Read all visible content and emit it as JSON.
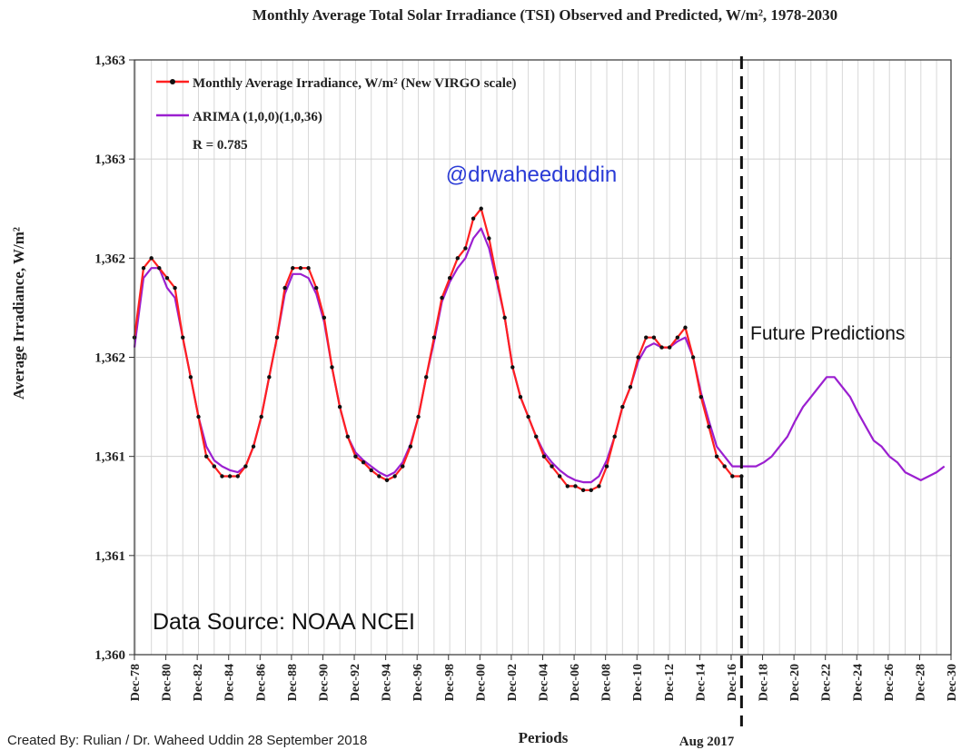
{
  "chart_data": {
    "type": "line",
    "title": "Monthly Average Total Solar Irradiance (TSI) Observed and Predicted, W/m², 1978-2030",
    "ylabel": "Average Irradiance, W/m²",
    "xlabel": "Periods",
    "ylim": [
      1360.0,
      1363.0
    ],
    "xlim": [
      1978.92,
      2030.92
    ],
    "y_tick_values": [
      1360.0,
      1360.5,
      1361.0,
      1361.5,
      1362.0,
      1362.5,
      1363.0
    ],
    "y_tick_labels": [
      "1,360",
      "1,361",
      "1,361",
      "1,362",
      "1,362",
      "1,363",
      "1,363"
    ],
    "x_tick_labels": [
      "Dec-78",
      "Dec-80",
      "Dec-82",
      "Dec-84",
      "Dec-86",
      "Dec-88",
      "Dec-90",
      "Dec-92",
      "Dec-94",
      "Dec-96",
      "Dec-98",
      "Dec-00",
      "Dec-02",
      "Dec-04",
      "Dec-06",
      "Dec-08",
      "Dec-10",
      "Dec-12",
      "Dec-14",
      "Dec-16",
      "Dec-18",
      "Dec-20",
      "Dec-22",
      "Dec-24",
      "Dec-26",
      "Dec-28",
      "Dec-30"
    ],
    "x_tick_years": [
      1978.92,
      1980.92,
      1982.92,
      1984.92,
      1986.92,
      1988.92,
      1990.92,
      1992.92,
      1994.92,
      1996.92,
      1998.92,
      2000.92,
      2002.92,
      2004.92,
      2006.92,
      2008.92,
      2010.92,
      2012.92,
      2014.92,
      2016.92,
      2018.92,
      2020.92,
      2022.92,
      2024.92,
      2026.92,
      2028.92,
      2030.92
    ],
    "grid": true,
    "legend_position": "top-left",
    "series": [
      {
        "name": "Monthly Average Irradiance, W/m² (New VIRGO scale)",
        "color": "#ff2020",
        "marker": "dot",
        "x": [
          1978.92,
          1979.5,
          1980.0,
          1980.5,
          1981.0,
          1981.5,
          1982.0,
          1982.5,
          1983.0,
          1983.5,
          1984.0,
          1984.5,
          1985.0,
          1985.5,
          1986.0,
          1986.5,
          1987.0,
          1987.5,
          1988.0,
          1988.5,
          1989.0,
          1989.5,
          1990.0,
          1990.5,
          1991.0,
          1991.5,
          1992.0,
          1992.5,
          1993.0,
          1993.5,
          1994.0,
          1994.5,
          1995.0,
          1995.5,
          1996.0,
          1996.5,
          1997.0,
          1997.5,
          1998.0,
          1998.5,
          1999.0,
          1999.5,
          2000.0,
          2000.5,
          2001.0,
          2001.5,
          2002.0,
          2002.5,
          2003.0,
          2003.5,
          2004.0,
          2004.5,
          2005.0,
          2005.5,
          2006.0,
          2006.5,
          2007.0,
          2007.5,
          2008.0,
          2008.5,
          2009.0,
          2009.5,
          2010.0,
          2010.5,
          2011.0,
          2011.5,
          2012.0,
          2012.5,
          2013.0,
          2013.5,
          2014.0,
          2014.5,
          2015.0,
          2015.5,
          2016.0,
          2016.5,
          2017.0,
          2017.58
        ],
        "values": [
          1361.6,
          1361.95,
          1362.0,
          1361.95,
          1361.9,
          1361.85,
          1361.6,
          1361.4,
          1361.2,
          1361.0,
          1360.95,
          1360.9,
          1360.9,
          1360.9,
          1360.95,
          1361.05,
          1361.2,
          1361.4,
          1361.6,
          1361.85,
          1361.95,
          1361.95,
          1361.95,
          1361.85,
          1361.7,
          1361.45,
          1361.25,
          1361.1,
          1361.0,
          1360.97,
          1360.93,
          1360.9,
          1360.88,
          1360.9,
          1360.95,
          1361.05,
          1361.2,
          1361.4,
          1361.6,
          1361.8,
          1361.9,
          1362.0,
          1362.05,
          1362.2,
          1362.25,
          1362.1,
          1361.9,
          1361.7,
          1361.45,
          1361.3,
          1361.2,
          1361.1,
          1361.0,
          1360.95,
          1360.9,
          1360.85,
          1360.85,
          1360.83,
          1360.83,
          1360.85,
          1360.95,
          1361.1,
          1361.25,
          1361.35,
          1361.5,
          1361.6,
          1361.6,
          1361.55,
          1361.55,
          1361.6,
          1361.65,
          1361.5,
          1361.3,
          1361.15,
          1361.0,
          1360.95,
          1360.9,
          1360.9
        ]
      },
      {
        "name": "ARIMA (1,0,0)(1,0,36)",
        "color": "#9b1fd0",
        "marker": "none",
        "x": [
          1978.92,
          1979.5,
          1980.0,
          1980.5,
          1981.0,
          1981.5,
          1982.0,
          1982.5,
          1983.0,
          1983.5,
          1984.0,
          1984.5,
          1985.0,
          1985.5,
          1986.0,
          1986.5,
          1987.0,
          1987.5,
          1988.0,
          1988.5,
          1989.0,
          1989.5,
          1990.0,
          1990.5,
          1991.0,
          1991.5,
          1992.0,
          1992.5,
          1993.0,
          1993.5,
          1994.0,
          1994.5,
          1995.0,
          1995.5,
          1996.0,
          1996.5,
          1997.0,
          1997.5,
          1998.0,
          1998.5,
          1999.0,
          1999.5,
          2000.0,
          2000.5,
          2001.0,
          2001.5,
          2002.0,
          2002.5,
          2003.0,
          2003.5,
          2004.0,
          2004.5,
          2005.0,
          2005.5,
          2006.0,
          2006.5,
          2007.0,
          2007.5,
          2008.0,
          2008.5,
          2009.0,
          2009.5,
          2010.0,
          2010.5,
          2011.0,
          2011.5,
          2012.0,
          2012.5,
          2013.0,
          2013.5,
          2014.0,
          2014.5,
          2015.0,
          2015.5,
          2016.0,
          2016.5,
          2017.0,
          2017.58,
          2018.0,
          2018.5,
          2019.0,
          2019.5,
          2020.0,
          2020.5,
          2021.0,
          2021.5,
          2022.0,
          2022.5,
          2023.0,
          2023.5,
          2024.0,
          2024.5,
          2025.0,
          2025.5,
          2026.0,
          2026.5,
          2027.0,
          2027.5,
          2028.0,
          2028.5,
          2029.0,
          2029.5,
          2030.0,
          2030.5
        ],
        "values": [
          1361.55,
          1361.9,
          1361.95,
          1361.95,
          1361.85,
          1361.8,
          1361.6,
          1361.4,
          1361.2,
          1361.05,
          1360.98,
          1360.95,
          1360.93,
          1360.92,
          1360.95,
          1361.05,
          1361.2,
          1361.4,
          1361.6,
          1361.82,
          1361.92,
          1361.92,
          1361.9,
          1361.82,
          1361.68,
          1361.45,
          1361.25,
          1361.1,
          1361.02,
          1360.98,
          1360.95,
          1360.92,
          1360.9,
          1360.92,
          1360.97,
          1361.06,
          1361.2,
          1361.4,
          1361.58,
          1361.78,
          1361.88,
          1361.95,
          1362.0,
          1362.1,
          1362.15,
          1362.05,
          1361.88,
          1361.7,
          1361.45,
          1361.3,
          1361.2,
          1361.1,
          1361.02,
          1360.97,
          1360.93,
          1360.9,
          1360.88,
          1360.87,
          1360.87,
          1360.9,
          1360.98,
          1361.1,
          1361.25,
          1361.35,
          1361.48,
          1361.55,
          1361.57,
          1361.55,
          1361.55,
          1361.58,
          1361.6,
          1361.5,
          1361.32,
          1361.18,
          1361.05,
          1361.0,
          1360.95,
          1360.95,
          1360.95,
          1360.95,
          1360.97,
          1361.0,
          1361.05,
          1361.1,
          1361.18,
          1361.25,
          1361.3,
          1361.35,
          1361.4,
          1361.4,
          1361.35,
          1361.3,
          1361.22,
          1361.15,
          1361.08,
          1361.05,
          1361.0,
          1360.97,
          1360.92,
          1360.9,
          1360.88,
          1360.9,
          1360.92,
          1360.95
        ]
      }
    ],
    "annotations": {
      "r_value": "R = 0.785",
      "handle": "@drwaheeduddin",
      "future": "Future Predictions",
      "source": "Data Source: NOAA NCEI",
      "divider_label": "Aug 2017",
      "divider_year": 2017.58
    },
    "credit": "Created By: Rulian / Dr. Waheed Uddin   28 September 2018"
  }
}
